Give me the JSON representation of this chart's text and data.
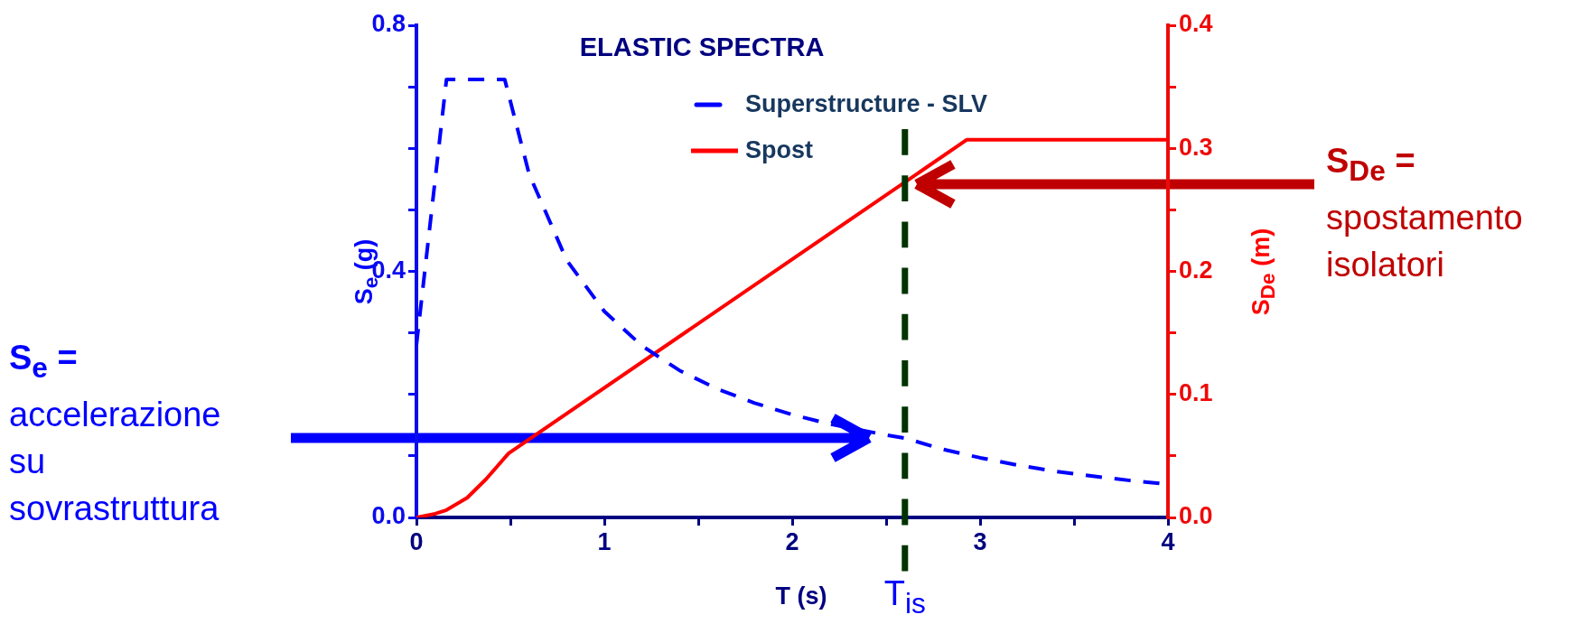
{
  "chart_data": {
    "type": "line",
    "title": "ELASTIC SPECTRA",
    "xlabel": "T (s)",
    "ylabel": "S$_{e}$ (g)",
    "y2label": "S$_{De}$ (m)",
    "series": [
      {
        "name": "Superstructure - SLV",
        "color": "#0000ff",
        "line_style": "dashed",
        "x": [
          0,
          0.16,
          0.47,
          0.6,
          0.8,
          1.0,
          1.2,
          1.4,
          1.6,
          1.8,
          2.0,
          2.2,
          2.5,
          2.6,
          2.8,
          3.0,
          3.2,
          3.4,
          3.6,
          3.8,
          4.0
        ],
        "values": [
          0.28,
          0.712,
          0.712,
          0.558,
          0.418,
          0.335,
          0.279,
          0.239,
          0.209,
          0.186,
          0.167,
          0.152,
          0.134,
          0.129,
          0.111,
          0.097,
          0.085,
          0.075,
          0.067,
          0.06,
          0.054
        ]
      },
      {
        "name": "Spost",
        "color": "#ff0000",
        "line_style": "solid",
        "axis": "y2",
        "x": [
          0,
          0.1,
          0.16,
          0.27,
          0.37,
          0.49,
          2.93,
          4.0
        ],
        "values": [
          0,
          0.003,
          0.006,
          0.016,
          0.031,
          0.052,
          0.307,
          0.307
        ]
      }
    ],
    "xlim": [
      0,
      4
    ],
    "xticks": [
      0,
      {
        "value": 0.5,
        "label": null
      },
      1,
      {
        "value": 1.5,
        "label": null
      },
      2,
      {
        "value": 2.5,
        "label": null
      },
      3,
      {
        "value": 3.5,
        "label": null
      },
      4
    ],
    "ylim": [
      0,
      0.8
    ],
    "yticks": [
      {
        "value": 0,
        "label": "0.0"
      },
      {
        "value": 0.1,
        "label": null
      },
      {
        "value": 0.2,
        "label": null
      },
      {
        "value": 0.3,
        "label": null
      },
      0.4,
      {
        "value": 0.5,
        "label": null
      },
      {
        "value": 0.6,
        "label": null
      },
      {
        "value": 0.7,
        "label": null
      },
      0.8
    ],
    "y2lim": [
      0,
      0.4
    ],
    "y2ticks": [
      {
        "value": 0,
        "label": "0.0"
      },
      {
        "value": 0.05,
        "label": null
      },
      0.1,
      {
        "value": 0.15,
        "label": null
      },
      0.2,
      {
        "value": 0.25,
        "label": null
      },
      0.3,
      {
        "value": 0.35,
        "label": null
      },
      0.4
    ],
    "ref_lines": [
      {
        "axis": "x",
        "value": 2.6,
        "label": "T$_{is}$",
        "color": "#003300",
        "line_style": "dashed"
      }
    ],
    "annotations": [
      "S$_{e}$ =\naccelerazione\nsu\nsovrastruttura",
      "S$_{De}$ =\nspostamento\nisolatori"
    ],
    "legend": "top",
    "marker": "none",
    "grid": false
  }
}
